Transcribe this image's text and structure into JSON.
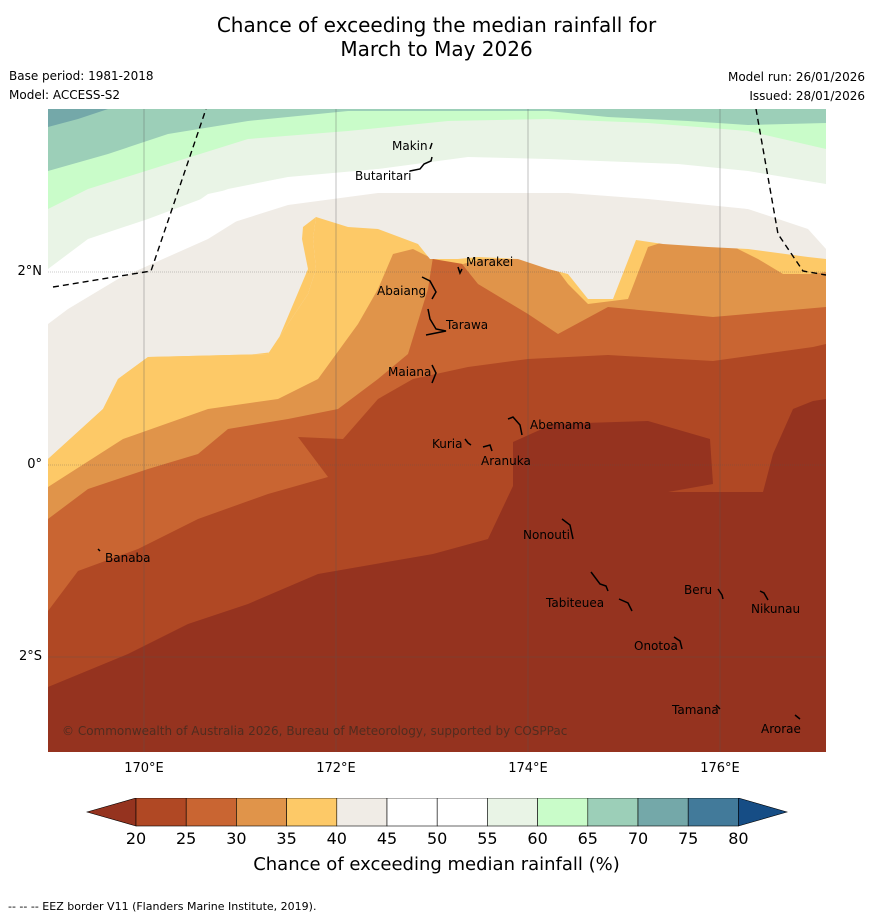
{
  "title_line1": "Chance of exceeding the median rainfall for",
  "title_line2": "March to May 2026",
  "base_period": "Base period: 1981-2018",
  "model": "Model: ACCESS-S2",
  "model_run": "Model run: 26/01/2026",
  "issued": "Issued: 28/01/2026",
  "copyright": "© Commonwealth of Australia 2026, Bureau of Meteorology, supported by COSPPac",
  "x_ticks": [
    "170°E",
    "172°E",
    "174°E",
    "176°E"
  ],
  "y_ticks": [
    "2°N",
    "0°",
    "2°S"
  ],
  "islands": [
    "Makin",
    "Butaritari",
    "Marakei",
    "Abaiang",
    "Tarawa",
    "Maiana",
    "Abemama",
    "Kuria",
    "Aranuka",
    "Banaba",
    "Nonouti",
    "Tabiteuea",
    "Beru",
    "Nikunau",
    "Onotoa",
    "Tamana",
    "Arorae"
  ],
  "colorbar": {
    "labels": [
      "20",
      "25",
      "30",
      "35",
      "40",
      "45",
      "50",
      "55",
      "60",
      "65",
      "70",
      "75",
      "80"
    ],
    "colors": [
      "#95331f",
      "#b04824",
      "#c96532",
      "#e0944a",
      "#fdc967",
      "#f0ece6",
      "#ffffff",
      "#ffffff",
      "#e9f4e6",
      "#c9fcc9",
      "#9ccfb8",
      "#74a8a9",
      "#427a9a",
      "#164d85"
    ],
    "title": "Chance of exceeding median rainfall (%)"
  },
  "footer": "--  --  -- EEZ border V11 (Flanders Marine Institute, 2019)."
}
